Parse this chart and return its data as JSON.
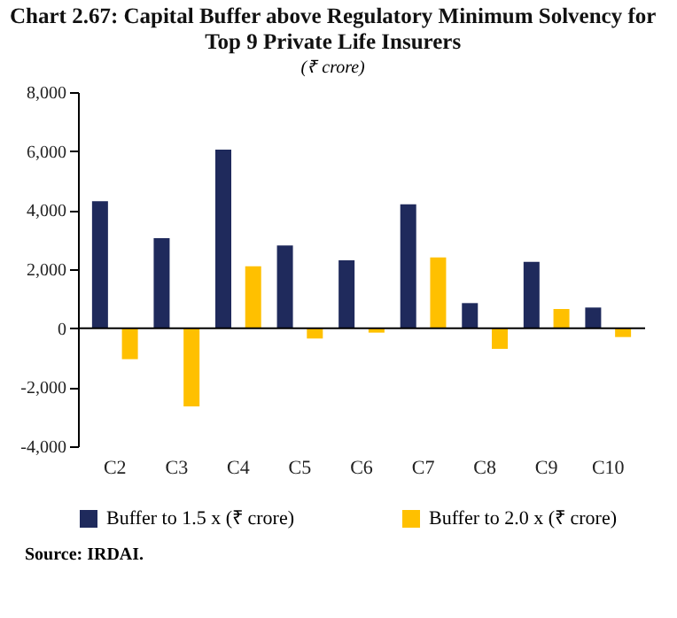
{
  "chart_data": {
    "type": "bar",
    "title": [
      "Chart 2.67: Capital Buffer above Regulatory Minimum Solvency for",
      "Top 9 Private Life Insurers"
    ],
    "subtitle": "(₹ crore)",
    "categories": [
      "C2",
      "C3",
      "C4",
      "C5",
      "C6",
      "C7",
      "C8",
      "C9",
      "C10"
    ],
    "series": [
      {
        "name": "Buffer to 1.5 x (₹ crore)",
        "color": "#1f2a5c",
        "values": [
          4300,
          3050,
          6050,
          2800,
          2300,
          4200,
          850,
          2250,
          700
        ]
      },
      {
        "name": "Buffer to 2.0 x (₹ crore)",
        "color": "#ffc000",
        "values": [
          -1050,
          -2650,
          2100,
          -350,
          -150,
          2400,
          -700,
          650,
          -300
        ]
      }
    ],
    "ylim": [
      -4000,
      8000
    ],
    "yticks": [
      {
        "value": -4000,
        "label": "-4,000"
      },
      {
        "value": -2000,
        "label": "-2,000"
      },
      0,
      {
        "value": 2000,
        "label": "2,000"
      },
      {
        "value": 4000,
        "label": "4,000"
      },
      {
        "value": 6000,
        "label": "6,000"
      },
      {
        "value": 8000,
        "label": "8,000"
      }
    ],
    "grid": false,
    "ref_lines": [
      {
        "axis": "y",
        "value": 0,
        "color": "#000000"
      }
    ],
    "legend": "bottom",
    "annotations": [
      "Source: IRDAI."
    ]
  }
}
